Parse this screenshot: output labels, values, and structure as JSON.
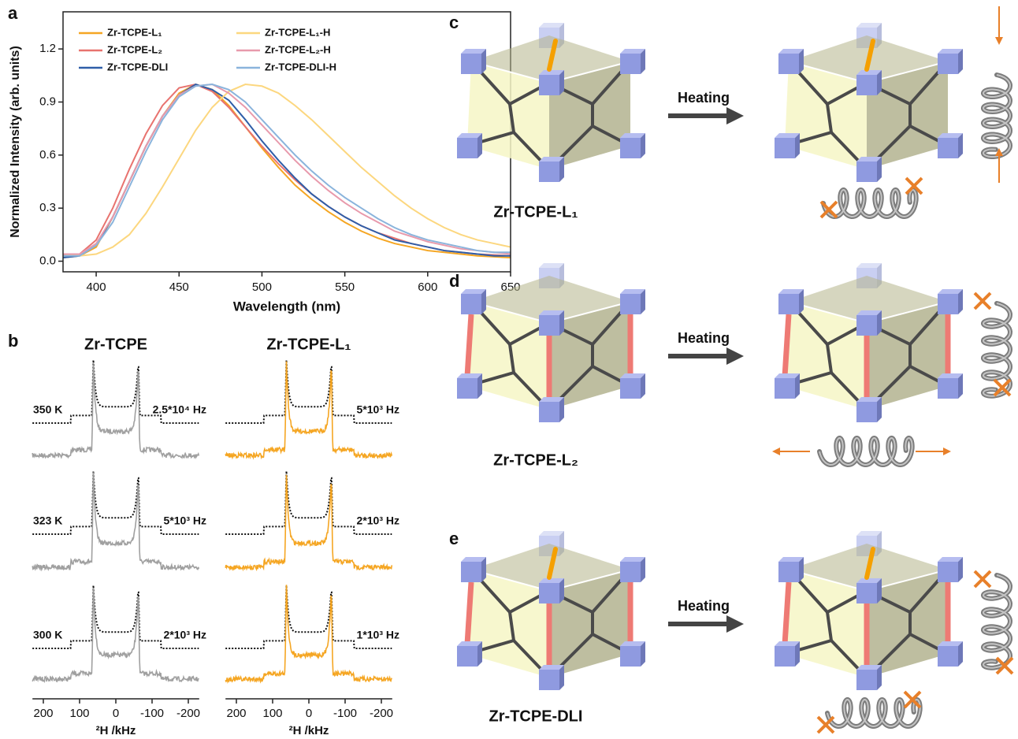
{
  "chart_data": {
    "type": "line",
    "label": "a",
    "xlabel": "Wavelength (nm)",
    "ylabel": "Normalized Intensity (arb. units)",
    "x": [
      380,
      390,
      400,
      410,
      420,
      430,
      440,
      450,
      460,
      470,
      480,
      490,
      500,
      510,
      520,
      530,
      540,
      550,
      560,
      570,
      580,
      590,
      600,
      610,
      620,
      630,
      640,
      650
    ],
    "series": [
      {
        "name": "Zr-TCPE-L₁",
        "color": "#f5a623",
        "values": [
          0.02,
          0.03,
          0.08,
          0.25,
          0.45,
          0.65,
          0.82,
          0.95,
          1.0,
          0.97,
          0.88,
          0.76,
          0.64,
          0.53,
          0.43,
          0.35,
          0.28,
          0.22,
          0.17,
          0.13,
          0.1,
          0.08,
          0.06,
          0.05,
          0.04,
          0.03,
          0.025,
          0.02
        ]
      },
      {
        "name": "Zr-TCPE-L₂",
        "color": "#e8736f",
        "values": [
          0.03,
          0.04,
          0.12,
          0.3,
          0.52,
          0.72,
          0.88,
          0.98,
          1.0,
          0.96,
          0.87,
          0.76,
          0.65,
          0.55,
          0.46,
          0.38,
          0.31,
          0.25,
          0.2,
          0.16,
          0.13,
          0.1,
          0.08,
          0.06,
          0.05,
          0.04,
          0.035,
          0.03
        ]
      },
      {
        "name": "Zr-TCPE-DLI",
        "color": "#2f5ea8",
        "values": [
          0.02,
          0.03,
          0.09,
          0.25,
          0.45,
          0.65,
          0.82,
          0.94,
          1.0,
          0.97,
          0.91,
          0.8,
          0.68,
          0.57,
          0.47,
          0.38,
          0.31,
          0.25,
          0.2,
          0.16,
          0.12,
          0.1,
          0.08,
          0.06,
          0.05,
          0.04,
          0.03,
          0.03
        ]
      },
      {
        "name": "Zr-TCPE-L₁-H",
        "color": "#fcd77f",
        "values": [
          0.04,
          0.03,
          0.04,
          0.08,
          0.15,
          0.27,
          0.42,
          0.58,
          0.74,
          0.87,
          0.96,
          1.0,
          0.99,
          0.95,
          0.88,
          0.8,
          0.71,
          0.62,
          0.53,
          0.45,
          0.37,
          0.3,
          0.24,
          0.19,
          0.15,
          0.12,
          0.1,
          0.08
        ]
      },
      {
        "name": "Zr-TCPE-L₂-H",
        "color": "#e89aac",
        "values": [
          0.04,
          0.04,
          0.1,
          0.25,
          0.45,
          0.65,
          0.82,
          0.94,
          0.99,
          1.0,
          0.95,
          0.87,
          0.77,
          0.67,
          0.57,
          0.48,
          0.4,
          0.33,
          0.27,
          0.22,
          0.17,
          0.14,
          0.11,
          0.09,
          0.07,
          0.06,
          0.05,
          0.04
        ]
      },
      {
        "name": "Zr-TCPE-DLI-H",
        "color": "#8ab4dc",
        "values": [
          0.03,
          0.03,
          0.09,
          0.22,
          0.42,
          0.62,
          0.8,
          0.93,
          0.99,
          1.0,
          0.97,
          0.9,
          0.8,
          0.7,
          0.6,
          0.51,
          0.43,
          0.36,
          0.3,
          0.24,
          0.19,
          0.15,
          0.12,
          0.1,
          0.08,
          0.06,
          0.05,
          0.05
        ]
      }
    ],
    "xlim": [
      380,
      650
    ],
    "xticks": [
      400,
      450,
      500,
      550,
      600,
      650
    ],
    "ylim": [
      -0.06,
      1.41
    ],
    "yticks": [
      {
        "value": 0,
        "label": "0.0"
      },
      0.3,
      0.6,
      0.9,
      1.2
    ]
  },
  "nmr": {
    "label": "b",
    "xlabel": "²H /kHz",
    "xlim": [
      230,
      -230
    ],
    "xticks": [
      200,
      100,
      0,
      -100,
      -200
    ],
    "temperatures": [
      "350 K",
      "323 K",
      "300 K"
    ],
    "columns": [
      {
        "title": "Zr-TCPE",
        "color": "#a0a0a0",
        "rates": [
          "2.5*10⁴ Hz",
          "5*10³ Hz",
          "2*10³ Hz"
        ]
      },
      {
        "title": "Zr-TCPE-L₁",
        "color": "#f5a623",
        "rates": [
          "5*10³ Hz",
          "2*10³ Hz",
          "1*10³ Hz"
        ]
      }
    ]
  },
  "schemes": [
    {
      "label": "c",
      "name": "Zr-TCPE-L₁",
      "arrow": "Heating"
    },
    {
      "label": "d",
      "name": "Zr-TCPE-L₂",
      "arrow": "Heating"
    },
    {
      "label": "e",
      "name": "Zr-TCPE-DLI",
      "arrow": "Heating"
    }
  ]
}
